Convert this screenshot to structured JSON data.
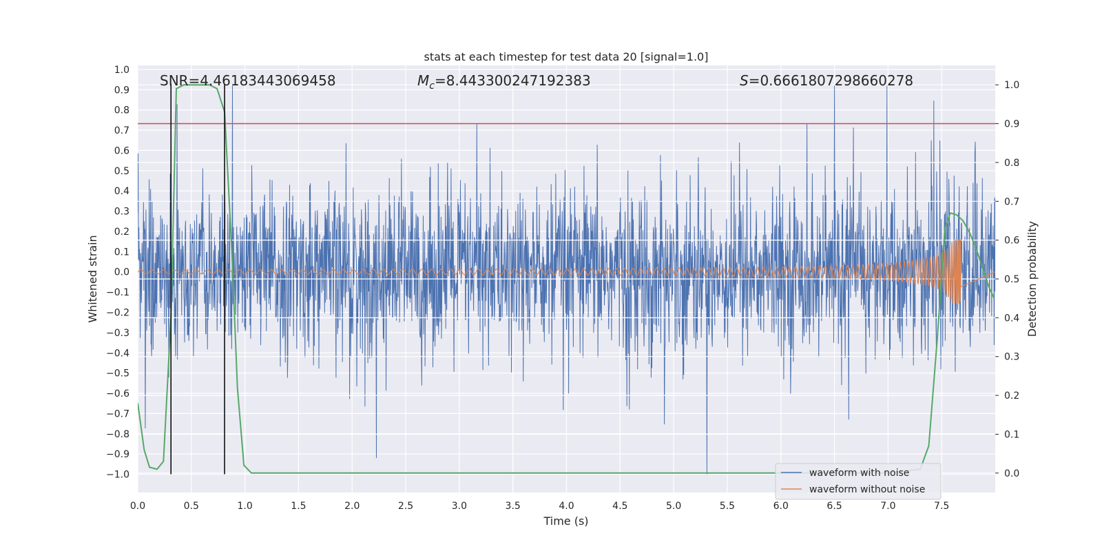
{
  "chart_data": {
    "type": "line",
    "title": "stats at each timestep for test data 20 [signal=1.0]",
    "xlabel": "Time (s)",
    "ylabel": "Whitened strain",
    "y2label": "Detection probability",
    "xlim": [
      0.0,
      8.0
    ],
    "ylim": [
      -1.09,
      1.02
    ],
    "y2lim": [
      -0.05,
      1.05
    ],
    "xticks": [
      "0.0",
      "0.5",
      "1.0",
      "1.5",
      "2.0",
      "2.5",
      "3.0",
      "3.5",
      "4.0",
      "4.5",
      "5.0",
      "5.5",
      "6.0",
      "6.5",
      "7.0",
      "7.5"
    ],
    "xtick_values": [
      0,
      0.5,
      1,
      1.5,
      2,
      2.5,
      3,
      3.5,
      4,
      4.5,
      5,
      5.5,
      6,
      6.5,
      7,
      7.5
    ],
    "yticks": [
      "1.0",
      "0.9",
      "0.8",
      "0.7",
      "0.6",
      "0.5",
      "0.4",
      "0.3",
      "0.2",
      "0.1",
      "0.0",
      "−0.1",
      "−0.2",
      "−0.3",
      "−0.4",
      "−0.5",
      "−0.6",
      "−0.7",
      "−0.8",
      "−0.9",
      "−1.0"
    ],
    "ytick_values": [
      1,
      0.9,
      0.8,
      0.7,
      0.6,
      0.5,
      0.4,
      0.3,
      0.2,
      0.1,
      0,
      -0.1,
      -0.2,
      -0.3,
      -0.4,
      -0.5,
      -0.6,
      -0.7,
      -0.8,
      -0.9,
      -1.0
    ],
    "y2ticks": [
      "1.0",
      "0.9",
      "0.8",
      "0.7",
      "0.6",
      "0.5",
      "0.4",
      "0.3",
      "0.2",
      "0.1",
      "0.0"
    ],
    "y2tick_values": [
      1,
      0.9,
      0.8,
      0.7,
      0.6,
      0.5,
      0.4,
      0.3,
      0.2,
      0.1,
      0
    ],
    "grid": true,
    "annotations": {
      "snr": "SNR=4.46183443069458",
      "mc_symbol": "M",
      "mc_sub": "c",
      "mc_value": "=8.443300247192383",
      "s_symbol": "S",
      "s_value": "=0.6661807298660278"
    },
    "threshold_line": {
      "y2": 0.9,
      "color": "#c44e52"
    },
    "vertical_lines": [
      0.31,
      0.81
    ],
    "legend": {
      "placement": "lower-right",
      "entries": [
        {
          "name": "waveform with noise",
          "color": "#4c72b0"
        },
        {
          "name": "waveform without noise",
          "color": "#dd8452"
        }
      ]
    },
    "series": [
      {
        "name": "waveform with noise",
        "color": "#4c72b0",
        "kind": "noise",
        "x_range": [
          0.0,
          8.0
        ],
        "envelope_typical": [
          -0.35,
          0.38
        ],
        "extremes": [
          -1.0,
          0.92
        ]
      },
      {
        "name": "waveform without noise",
        "color": "#dd8452",
        "kind": "chirp",
        "x_range": [
          0.0,
          7.68
        ],
        "start_amplitude": 0.01,
        "end_amplitude": 0.16,
        "merger_time": 7.68
      },
      {
        "name": "detection probability",
        "color": "#55a868",
        "axis": "right",
        "x": [
          0.0,
          0.03,
          0.06,
          0.11,
          0.18,
          0.24,
          0.31,
          0.36,
          0.43,
          0.55,
          0.67,
          0.74,
          0.81,
          0.88,
          0.93,
          0.99,
          1.06,
          1.5,
          2.5,
          3.5,
          4.5,
          5.5,
          6.5,
          7.0,
          7.3,
          7.38,
          7.46,
          7.53,
          7.58,
          7.64,
          7.7,
          7.76,
          7.82,
          7.88,
          7.94,
          7.99
        ],
        "y": [
          0.18,
          0.12,
          0.06,
          0.015,
          0.01,
          0.03,
          0.4,
          0.99,
          1.0,
          1.0,
          1.0,
          0.99,
          0.93,
          0.56,
          0.22,
          0.02,
          0.0,
          0.0,
          0.0,
          0.0,
          0.0,
          0.0,
          0.0,
          0.0,
          0.01,
          0.07,
          0.35,
          0.63,
          0.67,
          0.665,
          0.65,
          0.62,
          0.58,
          0.53,
          0.48,
          0.45
        ]
      }
    ]
  }
}
